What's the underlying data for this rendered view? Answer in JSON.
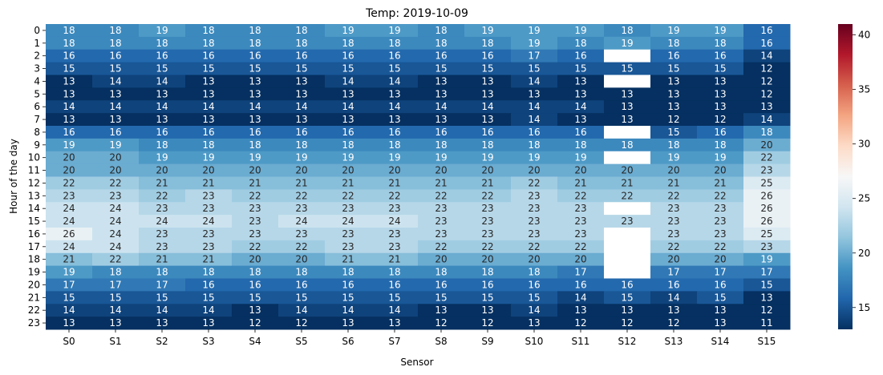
{
  "chart_data": {
    "type": "heatmap",
    "title": "Temp: 2019-10-09",
    "xlabel": "Sensor",
    "ylabel": "Hour of the day",
    "x_categories": [
      "S0",
      "S1",
      "S2",
      "S3",
      "S4",
      "S5",
      "S6",
      "S7",
      "S8",
      "S9",
      "S10",
      "S11",
      "S12",
      "S13",
      "S14",
      "S15"
    ],
    "y_categories": [
      "0",
      "1",
      "2",
      "3",
      "4",
      "5",
      "6",
      "7",
      "8",
      "9",
      "10",
      "11",
      "12",
      "13",
      "14",
      "15",
      "16",
      "17",
      "18",
      "19",
      "20",
      "21",
      "22",
      "23"
    ],
    "values": [
      [
        18,
        18,
        19,
        18,
        18,
        18,
        19,
        19,
        18,
        19,
        19,
        19,
        18,
        19,
        19,
        16
      ],
      [
        18,
        18,
        18,
        18,
        18,
        18,
        18,
        18,
        18,
        18,
        19,
        18,
        19,
        18,
        18,
        16
      ],
      [
        16,
        16,
        16,
        16,
        16,
        16,
        16,
        16,
        16,
        16,
        17,
        16,
        null,
        16,
        16,
        14
      ],
      [
        15,
        15,
        15,
        15,
        15,
        15,
        15,
        15,
        15,
        15,
        15,
        15,
        15,
        15,
        15,
        12
      ],
      [
        13,
        14,
        14,
        13,
        13,
        13,
        14,
        14,
        13,
        13,
        14,
        13,
        null,
        13,
        13,
        12
      ],
      [
        13,
        13,
        13,
        13,
        13,
        13,
        13,
        13,
        13,
        13,
        13,
        13,
        13,
        13,
        13,
        12
      ],
      [
        14,
        14,
        14,
        14,
        14,
        14,
        14,
        14,
        14,
        14,
        14,
        14,
        13,
        13,
        13,
        13
      ],
      [
        13,
        13,
        13,
        13,
        13,
        13,
        13,
        13,
        13,
        13,
        14,
        13,
        13,
        12,
        12,
        14
      ],
      [
        16,
        16,
        16,
        16,
        16,
        16,
        16,
        16,
        16,
        16,
        16,
        16,
        null,
        15,
        16,
        18
      ],
      [
        19,
        19,
        18,
        18,
        18,
        18,
        18,
        18,
        18,
        18,
        18,
        18,
        18,
        18,
        18,
        20
      ],
      [
        20,
        20,
        19,
        19,
        19,
        19,
        19,
        19,
        19,
        19,
        19,
        19,
        null,
        19,
        19,
        22
      ],
      [
        20,
        20,
        20,
        20,
        20,
        20,
        20,
        20,
        20,
        20,
        20,
        20,
        20,
        20,
        20,
        23
      ],
      [
        22,
        22,
        21,
        21,
        21,
        21,
        21,
        21,
        21,
        21,
        22,
        21,
        21,
        21,
        21,
        25
      ],
      [
        23,
        23,
        22,
        23,
        22,
        22,
        22,
        22,
        22,
        22,
        23,
        22,
        22,
        22,
        22,
        26
      ],
      [
        24,
        24,
        23,
        23,
        23,
        23,
        23,
        23,
        23,
        23,
        23,
        23,
        null,
        23,
        23,
        26
      ],
      [
        24,
        24,
        24,
        24,
        23,
        24,
        24,
        24,
        23,
        23,
        23,
        23,
        23,
        23,
        23,
        26
      ],
      [
        26,
        24,
        23,
        23,
        23,
        23,
        23,
        23,
        23,
        23,
        23,
        23,
        null,
        23,
        23,
        25
      ],
      [
        24,
        24,
        23,
        23,
        22,
        22,
        23,
        23,
        22,
        22,
        22,
        22,
        null,
        22,
        22,
        23
      ],
      [
        21,
        22,
        21,
        21,
        20,
        20,
        21,
        21,
        20,
        20,
        20,
        20,
        null,
        20,
        20,
        19
      ],
      [
        19,
        18,
        18,
        18,
        18,
        18,
        18,
        18,
        18,
        18,
        18,
        17,
        null,
        17,
        17,
        17
      ],
      [
        17,
        17,
        17,
        16,
        16,
        16,
        16,
        16,
        16,
        16,
        16,
        16,
        16,
        16,
        16,
        15
      ],
      [
        15,
        15,
        15,
        15,
        15,
        15,
        15,
        15,
        15,
        15,
        15,
        14,
        15,
        14,
        15,
        13
      ],
      [
        14,
        14,
        14,
        14,
        13,
        14,
        14,
        14,
        13,
        13,
        14,
        13,
        13,
        13,
        13,
        12
      ],
      [
        13,
        13,
        13,
        13,
        12,
        12,
        13,
        13,
        12,
        12,
        13,
        12,
        12,
        12,
        13,
        11
      ]
    ],
    "colorbar": {
      "min": 13,
      "max": 41,
      "ticks": [
        15,
        20,
        25,
        30,
        35,
        40
      ],
      "colormap": "RdBu_r"
    },
    "missing_color": "#ffffff"
  }
}
